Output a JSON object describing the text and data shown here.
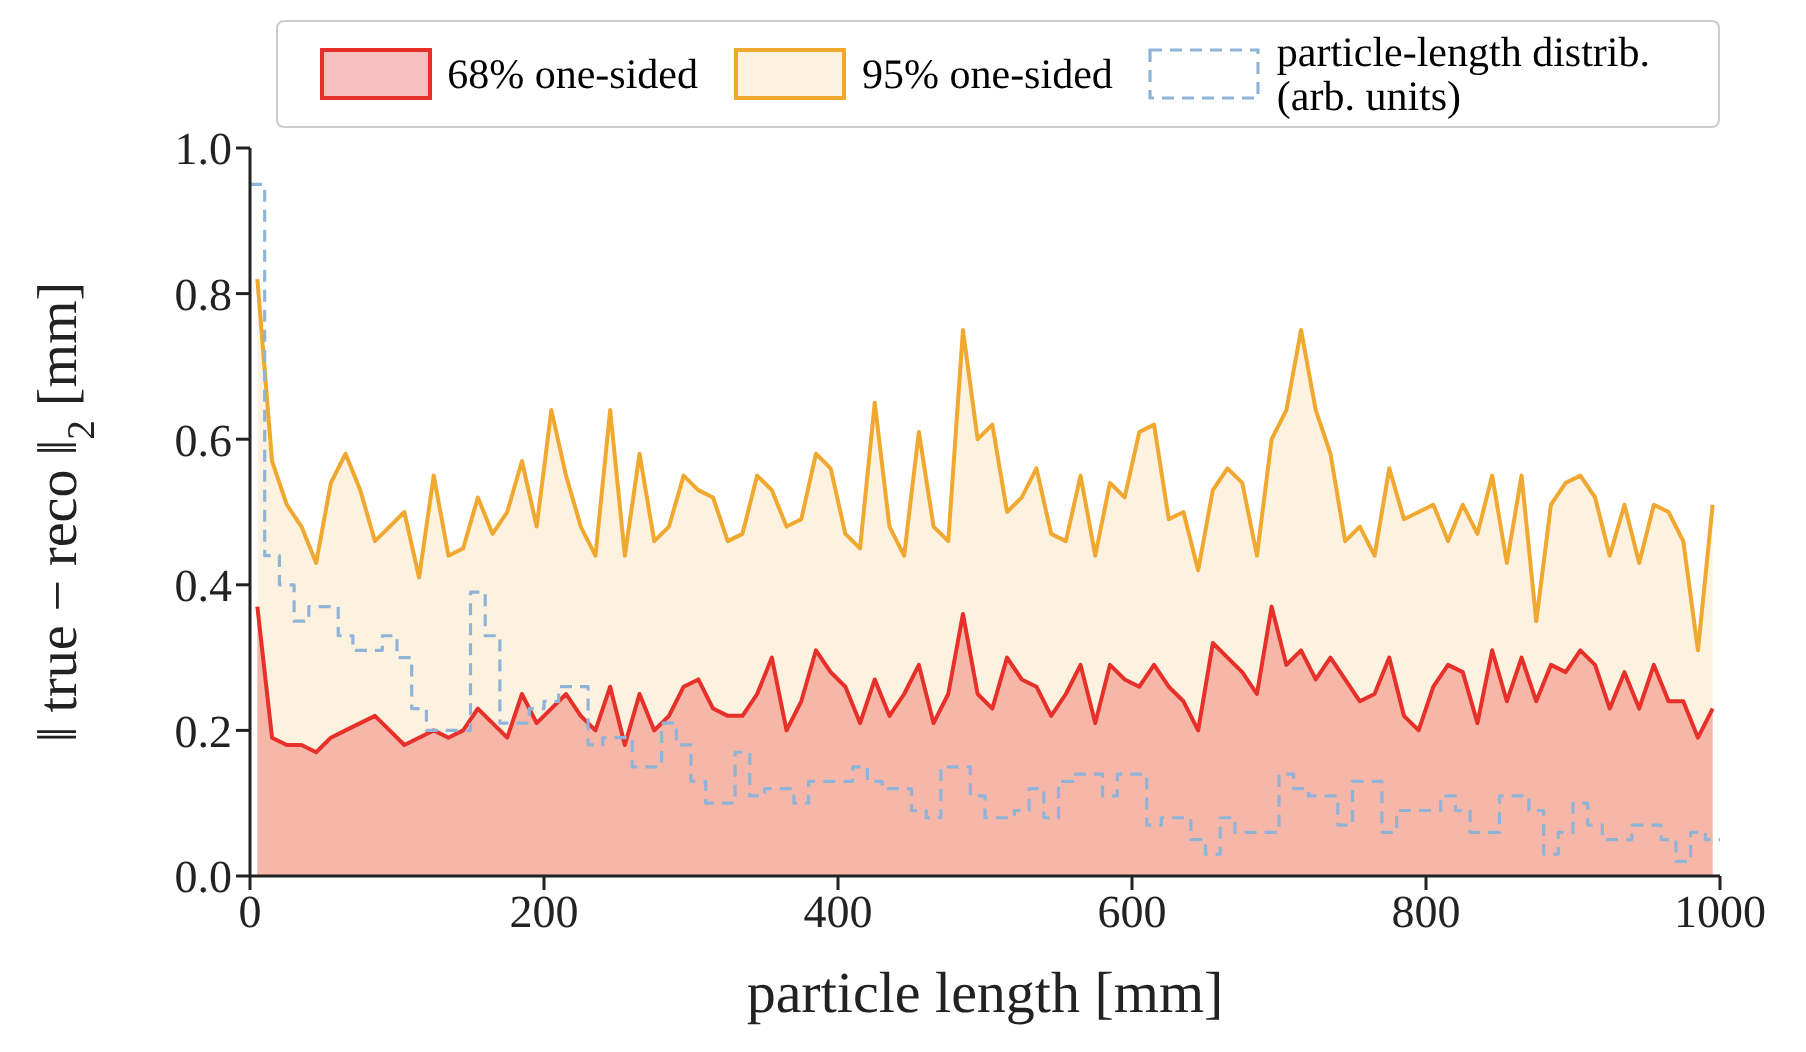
{
  "chart_data": {
    "type": "area",
    "xlabel": "particle length [mm]",
    "ylabel": "‖ true − reco ‖$_{2}$ [mm]",
    "xlim": [
      0,
      1000
    ],
    "xticks": [
      0,
      200,
      400,
      600,
      800,
      1000
    ],
    "ylim": [
      0,
      1
    ],
    "yticks": [
      {
        "value": 0,
        "label": "0.0"
      },
      0.2,
      0.4,
      0.6,
      0.8,
      {
        "value": 1,
        "label": "1.0"
      }
    ],
    "legend": "top",
    "series": [
      {
        "name": "95% one-sided",
        "type": "area",
        "color": "#f0a830",
        "x": [
          5,
          15,
          25,
          35,
          45,
          55,
          65,
          75,
          85,
          95,
          105,
          115,
          125,
          135,
          145,
          155,
          165,
          175,
          185,
          195,
          205,
          215,
          225,
          235,
          245,
          255,
          265,
          275,
          285,
          295,
          305,
          315,
          325,
          335,
          345,
          355,
          365,
          375,
          385,
          395,
          405,
          415,
          425,
          435,
          445,
          455,
          465,
          475,
          485,
          495,
          505,
          515,
          525,
          535,
          545,
          555,
          565,
          575,
          585,
          595,
          605,
          615,
          625,
          635,
          645,
          655,
          665,
          675,
          685,
          695,
          705,
          715,
          725,
          735,
          745,
          755,
          765,
          775,
          785,
          795,
          805,
          815,
          825,
          835,
          845,
          855,
          865,
          875,
          885,
          895,
          905,
          915,
          925,
          935,
          945,
          955,
          965,
          975,
          985,
          995
        ],
        "values": [
          0.82,
          0.57,
          0.51,
          0.48,
          0.43,
          0.54,
          0.58,
          0.53,
          0.46,
          0.48,
          0.5,
          0.41,
          0.55,
          0.44,
          0.45,
          0.52,
          0.47,
          0.5,
          0.57,
          0.48,
          0.64,
          0.55,
          0.48,
          0.44,
          0.64,
          0.44,
          0.58,
          0.46,
          0.48,
          0.55,
          0.53,
          0.52,
          0.46,
          0.47,
          0.55,
          0.53,
          0.48,
          0.49,
          0.58,
          0.56,
          0.47,
          0.45,
          0.65,
          0.48,
          0.44,
          0.61,
          0.48,
          0.46,
          0.75,
          0.6,
          0.62,
          0.5,
          0.52,
          0.56,
          0.47,
          0.46,
          0.55,
          0.44,
          0.54,
          0.52,
          0.61,
          0.62,
          0.49,
          0.5,
          0.42,
          0.53,
          0.56,
          0.54,
          0.44,
          0.6,
          0.64,
          0.75,
          0.64,
          0.58,
          0.46,
          0.48,
          0.44,
          0.56,
          0.49,
          0.5,
          0.51,
          0.46,
          0.51,
          0.47,
          0.55,
          0.43,
          0.55,
          0.35,
          0.51,
          0.54,
          0.55,
          0.52,
          0.44,
          0.51,
          0.43,
          0.51,
          0.5,
          0.46,
          0.31,
          0.51
        ]
      },
      {
        "name": "68% one-sided",
        "type": "area",
        "color": "#e8302a",
        "x": [
          5,
          15,
          25,
          35,
          45,
          55,
          65,
          75,
          85,
          95,
          105,
          115,
          125,
          135,
          145,
          155,
          165,
          175,
          185,
          195,
          205,
          215,
          225,
          235,
          245,
          255,
          265,
          275,
          285,
          295,
          305,
          315,
          325,
          335,
          345,
          355,
          365,
          375,
          385,
          395,
          405,
          415,
          425,
          435,
          445,
          455,
          465,
          475,
          485,
          495,
          505,
          515,
          525,
          535,
          545,
          555,
          565,
          575,
          585,
          595,
          605,
          615,
          625,
          635,
          645,
          655,
          665,
          675,
          685,
          695,
          705,
          715,
          725,
          735,
          745,
          755,
          765,
          775,
          785,
          795,
          805,
          815,
          825,
          835,
          845,
          855,
          865,
          875,
          885,
          895,
          905,
          915,
          925,
          935,
          945,
          955,
          965,
          975,
          985,
          995
        ],
        "values": [
          0.37,
          0.19,
          0.18,
          0.18,
          0.17,
          0.19,
          0.2,
          0.21,
          0.22,
          0.2,
          0.18,
          0.19,
          0.2,
          0.19,
          0.2,
          0.23,
          0.21,
          0.19,
          0.25,
          0.21,
          0.23,
          0.25,
          0.22,
          0.2,
          0.26,
          0.18,
          0.25,
          0.2,
          0.22,
          0.26,
          0.27,
          0.23,
          0.22,
          0.22,
          0.25,
          0.3,
          0.2,
          0.24,
          0.31,
          0.28,
          0.26,
          0.21,
          0.27,
          0.22,
          0.25,
          0.29,
          0.21,
          0.25,
          0.36,
          0.25,
          0.23,
          0.3,
          0.27,
          0.26,
          0.22,
          0.25,
          0.29,
          0.21,
          0.29,
          0.27,
          0.26,
          0.29,
          0.26,
          0.24,
          0.2,
          0.32,
          0.3,
          0.28,
          0.25,
          0.37,
          0.29,
          0.31,
          0.27,
          0.3,
          0.27,
          0.24,
          0.25,
          0.3,
          0.22,
          0.2,
          0.26,
          0.29,
          0.28,
          0.21,
          0.31,
          0.24,
          0.3,
          0.24,
          0.29,
          0.28,
          0.31,
          0.29,
          0.23,
          0.28,
          0.23,
          0.29,
          0.24,
          0.24,
          0.19,
          0.23
        ]
      },
      {
        "name": "particle-length distrib. (arb. units)",
        "type": "step",
        "color": "#8fb4d8",
        "line_style": "dashed",
        "x": [
          0,
          10,
          20,
          30,
          40,
          50,
          60,
          70,
          80,
          90,
          100,
          110,
          120,
          130,
          140,
          150,
          160,
          170,
          180,
          190,
          200,
          210,
          220,
          230,
          240,
          250,
          260,
          270,
          280,
          290,
          300,
          310,
          320,
          330,
          340,
          350,
          360,
          370,
          380,
          390,
          400,
          410,
          420,
          430,
          440,
          450,
          460,
          470,
          480,
          490,
          500,
          510,
          520,
          530,
          540,
          550,
          560,
          570,
          580,
          590,
          600,
          610,
          620,
          630,
          640,
          650,
          660,
          670,
          680,
          690,
          700,
          710,
          720,
          730,
          740,
          750,
          760,
          770,
          780,
          790,
          800,
          810,
          820,
          830,
          840,
          850,
          860,
          870,
          880,
          890,
          900,
          910,
          920,
          930,
          940,
          950,
          960,
          970,
          980,
          990,
          1000
        ],
        "values": [
          0.95,
          0.44,
          0.4,
          0.35,
          0.37,
          0.37,
          0.33,
          0.31,
          0.31,
          0.33,
          0.3,
          0.23,
          0.2,
          0.2,
          0.2,
          0.39,
          0.33,
          0.21,
          0.21,
          0.23,
          0.24,
          0.26,
          0.26,
          0.18,
          0.19,
          0.19,
          0.15,
          0.15,
          0.21,
          0.18,
          0.13,
          0.1,
          0.1,
          0.17,
          0.11,
          0.12,
          0.12,
          0.1,
          0.13,
          0.13,
          0.13,
          0.15,
          0.13,
          0.12,
          0.12,
          0.09,
          0.08,
          0.15,
          0.15,
          0.11,
          0.08,
          0.08,
          0.09,
          0.12,
          0.08,
          0.13,
          0.14,
          0.14,
          0.11,
          0.14,
          0.14,
          0.07,
          0.08,
          0.08,
          0.05,
          0.03,
          0.08,
          0.06,
          0.06,
          0.06,
          0.14,
          0.12,
          0.11,
          0.11,
          0.07,
          0.13,
          0.13,
          0.06,
          0.09,
          0.09,
          0.09,
          0.11,
          0.09,
          0.06,
          0.06,
          0.11,
          0.11,
          0.09,
          0.03,
          0.06,
          0.1,
          0.07,
          0.05,
          0.05,
          0.07,
          0.07,
          0.05,
          0.02,
          0.06,
          0.05,
          0.05
        ]
      }
    ]
  }
}
